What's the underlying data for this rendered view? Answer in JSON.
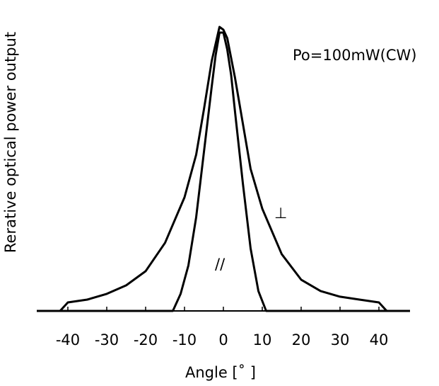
{
  "chart_data": {
    "type": "line",
    "title": "",
    "xlabel": "Angle [˚ ]",
    "ylabel": "Rerative optical power output",
    "xlim": [
      -48,
      48
    ],
    "ylim": [
      0,
      1.0
    ],
    "x_ticks": [
      -40,
      -30,
      -20,
      -10,
      0,
      10,
      20,
      30,
      40
    ],
    "x_tick_labels": [
      "-40",
      "-30",
      "-20",
      "-10",
      "0",
      "10",
      "20",
      "30",
      "40"
    ],
    "grid": false,
    "legend": "none",
    "annotations": {
      "condition": "Po=100mW(CW)",
      "perpendicular_label": "⊥",
      "parallel_label": "//"
    },
    "series": [
      {
        "name": "⊥",
        "x": [
          -48,
          -42,
          -40,
          -35,
          -30,
          -25,
          -20,
          -15,
          -10,
          -7,
          -5,
          -3,
          -1,
          0,
          1,
          3,
          5,
          7,
          10,
          15,
          20,
          25,
          30,
          35,
          40,
          42,
          48
        ],
        "y": [
          0.0,
          0.0,
          0.03,
          0.04,
          0.06,
          0.09,
          0.14,
          0.24,
          0.4,
          0.55,
          0.71,
          0.88,
          1.0,
          0.99,
          0.96,
          0.82,
          0.66,
          0.5,
          0.36,
          0.2,
          0.11,
          0.07,
          0.05,
          0.04,
          0.03,
          0.0,
          0.0
        ]
      },
      {
        "name": "//",
        "x": [
          -48,
          -13,
          -11,
          -9,
          -7,
          -5,
          -3,
          -2,
          -1,
          0,
          1,
          2,
          3,
          5,
          7,
          9,
          11,
          48
        ],
        "y": [
          0.0,
          0.0,
          0.06,
          0.16,
          0.33,
          0.56,
          0.79,
          0.9,
          0.98,
          0.98,
          0.92,
          0.83,
          0.7,
          0.45,
          0.22,
          0.07,
          0.0,
          0.0
        ]
      }
    ]
  }
}
